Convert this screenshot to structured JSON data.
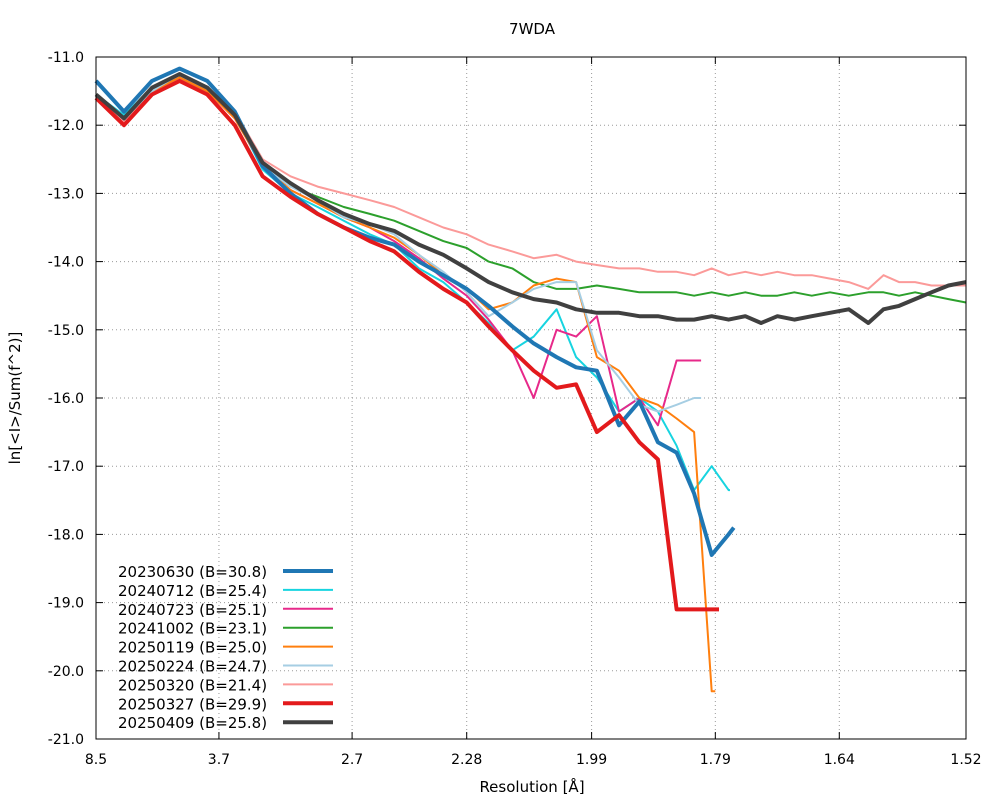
{
  "chart_data": {
    "type": "line",
    "title": "7WDA",
    "xlabel": "Resolution [Å]",
    "ylabel": "ln[<I>/Sum(f^2)]",
    "x_scale": "inverse-square resolution (1/d^2)",
    "xlim": [
      8.5,
      1.52
    ],
    "ylim": [
      -21.0,
      -11.0
    ],
    "x_ticks": [
      "8.5",
      "3.7",
      "2.7",
      "2.28",
      "1.99",
      "1.79",
      "1.64",
      "1.52"
    ],
    "y_ticks": [
      "-11.0",
      "-12.0",
      "-13.0",
      "-14.0",
      "-15.0",
      "-16.0",
      "-17.0",
      "-18.0",
      "-19.0",
      "-20.0",
      "-21.0"
    ],
    "grid": true,
    "legend_position": "bottom-left",
    "series": [
      {
        "name": "20230630 (B=30.8)",
        "color": "#1f77b4",
        "weight": "thick",
        "x": [
          8.5,
          6.05,
          4.95,
          4.3,
          3.85,
          3.52,
          3.26,
          3.05,
          2.88,
          2.74,
          2.62,
          2.52,
          2.43,
          2.35,
          2.28,
          2.22,
          2.16,
          2.11,
          2.06,
          2.02,
          1.98,
          1.94,
          1.905,
          1.875,
          1.846,
          1.82,
          1.795,
          1.772,
          1.765
        ],
        "y": [
          -11.35,
          -11.8,
          -11.35,
          -11.17,
          -11.35,
          -11.8,
          -12.6,
          -13.0,
          -13.3,
          -13.5,
          -13.65,
          -13.75,
          -14.0,
          -14.2,
          -14.4,
          -14.65,
          -14.95,
          -15.2,
          -15.4,
          -15.55,
          -15.6,
          -16.4,
          -16.05,
          -16.65,
          -16.8,
          -17.4,
          -18.3,
          -18.0,
          -17.9
        ],
        "values": [
          -11.35,
          -11.8,
          -11.35,
          -11.17,
          -11.35,
          -11.8,
          -12.6,
          -13.0,
          -13.3,
          -13.5,
          -13.65,
          -13.75,
          -14.0,
          -14.2,
          -14.4,
          -14.65,
          -14.95,
          -15.2,
          -15.4,
          -15.55,
          -15.6,
          -16.4,
          -16.05,
          -16.65,
          -16.8,
          -17.4,
          -18.3,
          -18.0,
          -17.9
        ]
      },
      {
        "name": "20240712 (B=25.4)",
        "color": "#17d4e0",
        "weight": "thin",
        "x": [
          8.5,
          6.05,
          4.95,
          4.3,
          3.85,
          3.52,
          3.26,
          3.05,
          2.88,
          2.74,
          2.62,
          2.52,
          2.43,
          2.35,
          2.28,
          2.22,
          2.16,
          2.11,
          2.06,
          2.02,
          1.98,
          1.94,
          1.905,
          1.875,
          1.846,
          1.82,
          1.795,
          1.772,
          1.77
        ],
        "y": [
          -11.55,
          -11.85,
          -11.45,
          -11.25,
          -11.45,
          -11.85,
          -12.65,
          -13.0,
          -13.2,
          -13.4,
          -13.6,
          -13.75,
          -14.1,
          -14.3,
          -14.6,
          -14.9,
          -15.3,
          -15.1,
          -14.7,
          -15.4,
          -15.7,
          -16.2,
          -16.0,
          -16.2,
          -16.7,
          -17.35,
          -17.0,
          -17.35,
          -17.35
        ],
        "values": [
          -11.55,
          -11.85,
          -11.45,
          -11.25,
          -11.45,
          -11.85,
          -12.65,
          -13.0,
          -13.2,
          -13.4,
          -13.6,
          -13.75,
          -14.1,
          -14.3,
          -14.6,
          -14.9,
          -15.3,
          -15.1,
          -14.7,
          -15.4,
          -15.7,
          -16.2,
          -16.0,
          -16.2,
          -16.7,
          -17.35,
          -17.0,
          -17.35,
          -17.35
        ]
      },
      {
        "name": "20240723 (B=25.1)",
        "color": "#e7298a",
        "weight": "thin",
        "x": [
          8.5,
          6.05,
          4.95,
          4.3,
          3.85,
          3.52,
          3.26,
          3.05,
          2.88,
          2.74,
          2.62,
          2.52,
          2.43,
          2.35,
          2.28,
          2.22,
          2.16,
          2.11,
          2.06,
          2.02,
          1.98,
          1.94,
          1.905,
          1.875,
          1.846,
          1.82,
          1.81
        ],
        "y": [
          -11.6,
          -11.9,
          -11.5,
          -11.3,
          -11.5,
          -11.9,
          -12.6,
          -12.95,
          -13.15,
          -13.35,
          -13.5,
          -13.7,
          -13.95,
          -14.25,
          -14.5,
          -14.85,
          -15.3,
          -16.0,
          -15.0,
          -15.1,
          -14.8,
          -16.2,
          -16.0,
          -16.4,
          -15.45,
          -15.45,
          -15.45
        ],
        "values": [
          -11.6,
          -11.9,
          -11.5,
          -11.3,
          -11.5,
          -11.9,
          -12.6,
          -12.95,
          -13.15,
          -13.35,
          -13.5,
          -13.7,
          -13.95,
          -14.25,
          -14.5,
          -14.85,
          -15.3,
          -16.0,
          -15.0,
          -15.1,
          -14.8,
          -16.2,
          -16.0,
          -16.4,
          -15.45,
          -15.45,
          -15.45
        ]
      },
      {
        "name": "20241002 (B=23.1)",
        "color": "#2ca02c",
        "weight": "thin",
        "x": [
          8.5,
          6.05,
          4.95,
          4.3,
          3.85,
          3.52,
          3.26,
          3.05,
          2.88,
          2.74,
          2.62,
          2.52,
          2.43,
          2.35,
          2.28,
          2.22,
          2.16,
          2.11,
          2.06,
          2.02,
          1.98,
          1.94,
          1.905,
          1.875,
          1.846,
          1.82,
          1.795,
          1.772,
          1.75,
          1.73,
          1.71,
          1.69,
          1.67,
          1.65,
          1.63,
          1.61,
          1.595,
          1.58,
          1.565,
          1.55,
          1.535,
          1.52
        ],
        "y": [
          -11.6,
          -11.95,
          -11.5,
          -11.3,
          -11.5,
          -11.85,
          -12.6,
          -12.9,
          -13.05,
          -13.2,
          -13.3,
          -13.4,
          -13.55,
          -13.7,
          -13.8,
          -14.0,
          -14.1,
          -14.3,
          -14.4,
          -14.4,
          -14.35,
          -14.4,
          -14.45,
          -14.45,
          -14.45,
          -14.5,
          -14.45,
          -14.5,
          -14.45,
          -14.5,
          -14.5,
          -14.45,
          -14.5,
          -14.45,
          -14.5,
          -14.45,
          -14.45,
          -14.5,
          -14.45,
          -14.5,
          -14.55,
          -14.6
        ],
        "values": [
          -11.6,
          -11.95,
          -11.5,
          -11.3,
          -11.5,
          -11.85,
          -12.6,
          -12.9,
          -13.05,
          -13.2,
          -13.3,
          -13.4,
          -13.55,
          -13.7,
          -13.8,
          -14.0,
          -14.1,
          -14.3,
          -14.4,
          -14.4,
          -14.35,
          -14.4,
          -14.45,
          -14.45,
          -14.45,
          -14.5,
          -14.45,
          -14.5,
          -14.45,
          -14.5,
          -14.5,
          -14.45,
          -14.5,
          -14.45,
          -14.5,
          -14.45,
          -14.45,
          -14.5,
          -14.45,
          -14.5,
          -14.55,
          -14.6
        ]
      },
      {
        "name": "20250119 (B=25.0)",
        "color": "#ff7f0e",
        "weight": "thin",
        "x": [
          8.5,
          6.05,
          4.95,
          4.3,
          3.85,
          3.52,
          3.26,
          3.05,
          2.88,
          2.74,
          2.62,
          2.52,
          2.43,
          2.35,
          2.28,
          2.22,
          2.16,
          2.11,
          2.06,
          2.02,
          1.98,
          1.94,
          1.905,
          1.875,
          1.846,
          1.82,
          1.795,
          1.79
        ],
        "y": [
          -11.6,
          -11.9,
          -11.5,
          -11.3,
          -11.5,
          -11.9,
          -12.6,
          -12.95,
          -13.15,
          -13.35,
          -13.5,
          -13.65,
          -13.9,
          -14.2,
          -14.4,
          -14.7,
          -14.6,
          -14.35,
          -14.25,
          -14.3,
          -15.4,
          -15.6,
          -16.0,
          -16.1,
          -16.3,
          -16.5,
          -20.3,
          -20.3
        ],
        "values": [
          -11.6,
          -11.9,
          -11.5,
          -11.3,
          -11.5,
          -11.9,
          -12.6,
          -12.95,
          -13.15,
          -13.35,
          -13.5,
          -13.65,
          -13.9,
          -14.2,
          -14.4,
          -14.7,
          -14.6,
          -14.35,
          -14.25,
          -14.3,
          -15.4,
          -15.6,
          -16.0,
          -16.1,
          -16.3,
          -16.5,
          -20.3,
          -20.3
        ]
      },
      {
        "name": "20250224 (B=24.7)",
        "color": "#a6cee3",
        "weight": "thin",
        "x": [
          8.5,
          6.05,
          4.95,
          4.3,
          3.85,
          3.52,
          3.26,
          3.05,
          2.88,
          2.74,
          2.62,
          2.52,
          2.43,
          2.35,
          2.28,
          2.22,
          2.16,
          2.11,
          2.06,
          2.02,
          1.98,
          1.94,
          1.905,
          1.875,
          1.846,
          1.82,
          1.81
        ],
        "y": [
          -11.6,
          -11.9,
          -11.5,
          -11.25,
          -11.45,
          -11.85,
          -12.6,
          -12.9,
          -13.1,
          -13.35,
          -13.45,
          -13.6,
          -13.9,
          -14.15,
          -14.45,
          -14.8,
          -14.6,
          -14.4,
          -14.3,
          -14.3,
          -15.3,
          -15.7,
          -16.1,
          -16.2,
          -16.1,
          -16.0,
          -16.0
        ],
        "values": [
          -11.6,
          -11.9,
          -11.5,
          -11.25,
          -11.45,
          -11.85,
          -12.6,
          -12.9,
          -13.1,
          -13.35,
          -13.45,
          -13.6,
          -13.9,
          -14.15,
          -14.45,
          -14.8,
          -14.6,
          -14.4,
          -14.3,
          -14.3,
          -15.3,
          -15.7,
          -16.1,
          -16.2,
          -16.1,
          -16.0,
          -16.0
        ]
      },
      {
        "name": "20250320 (B=21.4)",
        "color": "#fb9a99",
        "weight": "thin",
        "x": [
          8.5,
          6.05,
          4.95,
          4.3,
          3.85,
          3.52,
          3.26,
          3.05,
          2.88,
          2.74,
          2.62,
          2.52,
          2.43,
          2.35,
          2.28,
          2.22,
          2.16,
          2.11,
          2.06,
          2.02,
          1.98,
          1.94,
          1.905,
          1.875,
          1.846,
          1.82,
          1.795,
          1.772,
          1.75,
          1.73,
          1.71,
          1.69,
          1.67,
          1.65,
          1.63,
          1.61,
          1.595,
          1.58,
          1.565,
          1.55,
          1.535,
          1.52
        ],
        "y": [
          -11.6,
          -11.95,
          -11.5,
          -11.25,
          -11.45,
          -11.8,
          -12.5,
          -12.75,
          -12.9,
          -13.0,
          -13.1,
          -13.2,
          -13.35,
          -13.5,
          -13.6,
          -13.75,
          -13.85,
          -13.95,
          -13.9,
          -14.0,
          -14.05,
          -14.1,
          -14.1,
          -14.15,
          -14.15,
          -14.2,
          -14.1,
          -14.2,
          -14.15,
          -14.2,
          -14.15,
          -14.2,
          -14.2,
          -14.25,
          -14.3,
          -14.4,
          -14.2,
          -14.3,
          -14.3,
          -14.35,
          -14.35,
          -14.35
        ],
        "values": [
          -11.6,
          -11.95,
          -11.5,
          -11.25,
          -11.45,
          -11.8,
          -12.5,
          -12.75,
          -12.9,
          -13.0,
          -13.1,
          -13.2,
          -13.35,
          -13.5,
          -13.6,
          -13.75,
          -13.85,
          -13.95,
          -13.9,
          -14.0,
          -14.05,
          -14.1,
          -14.1,
          -14.15,
          -14.15,
          -14.2,
          -14.1,
          -14.2,
          -14.15,
          -14.2,
          -14.15,
          -14.2,
          -14.2,
          -14.25,
          -14.3,
          -14.4,
          -14.2,
          -14.3,
          -14.3,
          -14.35,
          -14.35,
          -14.35
        ]
      },
      {
        "name": "20250327 (B=29.9)",
        "color": "#e31a1c",
        "weight": "thick",
        "x": [
          8.5,
          6.05,
          4.95,
          4.3,
          3.85,
          3.52,
          3.26,
          3.05,
          2.88,
          2.74,
          2.62,
          2.52,
          2.43,
          2.35,
          2.28,
          2.22,
          2.16,
          2.11,
          2.06,
          2.02,
          1.98,
          1.94,
          1.905,
          1.875,
          1.846,
          1.82,
          1.795,
          1.785
        ],
        "y": [
          -11.6,
          -12.0,
          -11.55,
          -11.35,
          -11.55,
          -12.0,
          -12.75,
          -13.05,
          -13.3,
          -13.5,
          -13.7,
          -13.85,
          -14.15,
          -14.4,
          -14.6,
          -14.95,
          -15.3,
          -15.6,
          -15.85,
          -15.8,
          -16.5,
          -16.25,
          -16.65,
          -16.9,
          -19.1,
          -19.1,
          -19.1,
          -19.1
        ],
        "values": [
          -11.6,
          -12.0,
          -11.55,
          -11.35,
          -11.55,
          -12.0,
          -12.75,
          -13.05,
          -13.3,
          -13.5,
          -13.7,
          -13.85,
          -14.15,
          -14.4,
          -14.6,
          -14.95,
          -15.3,
          -15.6,
          -15.85,
          -15.8,
          -16.5,
          -16.25,
          -16.65,
          -16.9,
          -19.1,
          -19.1,
          -19.1,
          -19.1
        ]
      },
      {
        "name": "20250409 (B=25.8)",
        "color": "#404040",
        "weight": "thick",
        "x": [
          8.5,
          6.05,
          4.95,
          4.3,
          3.85,
          3.52,
          3.26,
          3.05,
          2.88,
          2.74,
          2.62,
          2.52,
          2.43,
          2.35,
          2.28,
          2.22,
          2.16,
          2.11,
          2.06,
          2.02,
          1.98,
          1.94,
          1.905,
          1.875,
          1.846,
          1.82,
          1.795,
          1.772,
          1.75,
          1.73,
          1.71,
          1.69,
          1.67,
          1.65,
          1.63,
          1.61,
          1.595,
          1.58,
          1.565,
          1.55,
          1.535,
          1.52
        ],
        "y": [
          -11.55,
          -11.9,
          -11.45,
          -11.25,
          -11.45,
          -11.85,
          -12.55,
          -12.85,
          -13.1,
          -13.3,
          -13.45,
          -13.55,
          -13.75,
          -13.9,
          -14.1,
          -14.3,
          -14.45,
          -14.55,
          -14.6,
          -14.7,
          -14.75,
          -14.75,
          -14.8,
          -14.8,
          -14.85,
          -14.85,
          -14.8,
          -14.85,
          -14.8,
          -14.9,
          -14.8,
          -14.85,
          -14.8,
          -14.75,
          -14.7,
          -14.9,
          -14.7,
          -14.65,
          -14.55,
          -14.45,
          -14.35,
          -14.3
        ],
        "values": [
          -11.55,
          -11.9,
          -11.45,
          -11.25,
          -11.45,
          -11.85,
          -12.55,
          -12.85,
          -13.1,
          -13.3,
          -13.45,
          -13.55,
          -13.75,
          -13.9,
          -14.1,
          -14.3,
          -14.45,
          -14.55,
          -14.6,
          -14.7,
          -14.75,
          -14.75,
          -14.8,
          -14.8,
          -14.85,
          -14.85,
          -14.8,
          -14.85,
          -14.8,
          -14.9,
          -14.8,
          -14.85,
          -14.8,
          -14.75,
          -14.7,
          -14.9,
          -14.7,
          -14.65,
          -14.55,
          -14.45,
          -14.35,
          -14.3
        ]
      }
    ]
  }
}
